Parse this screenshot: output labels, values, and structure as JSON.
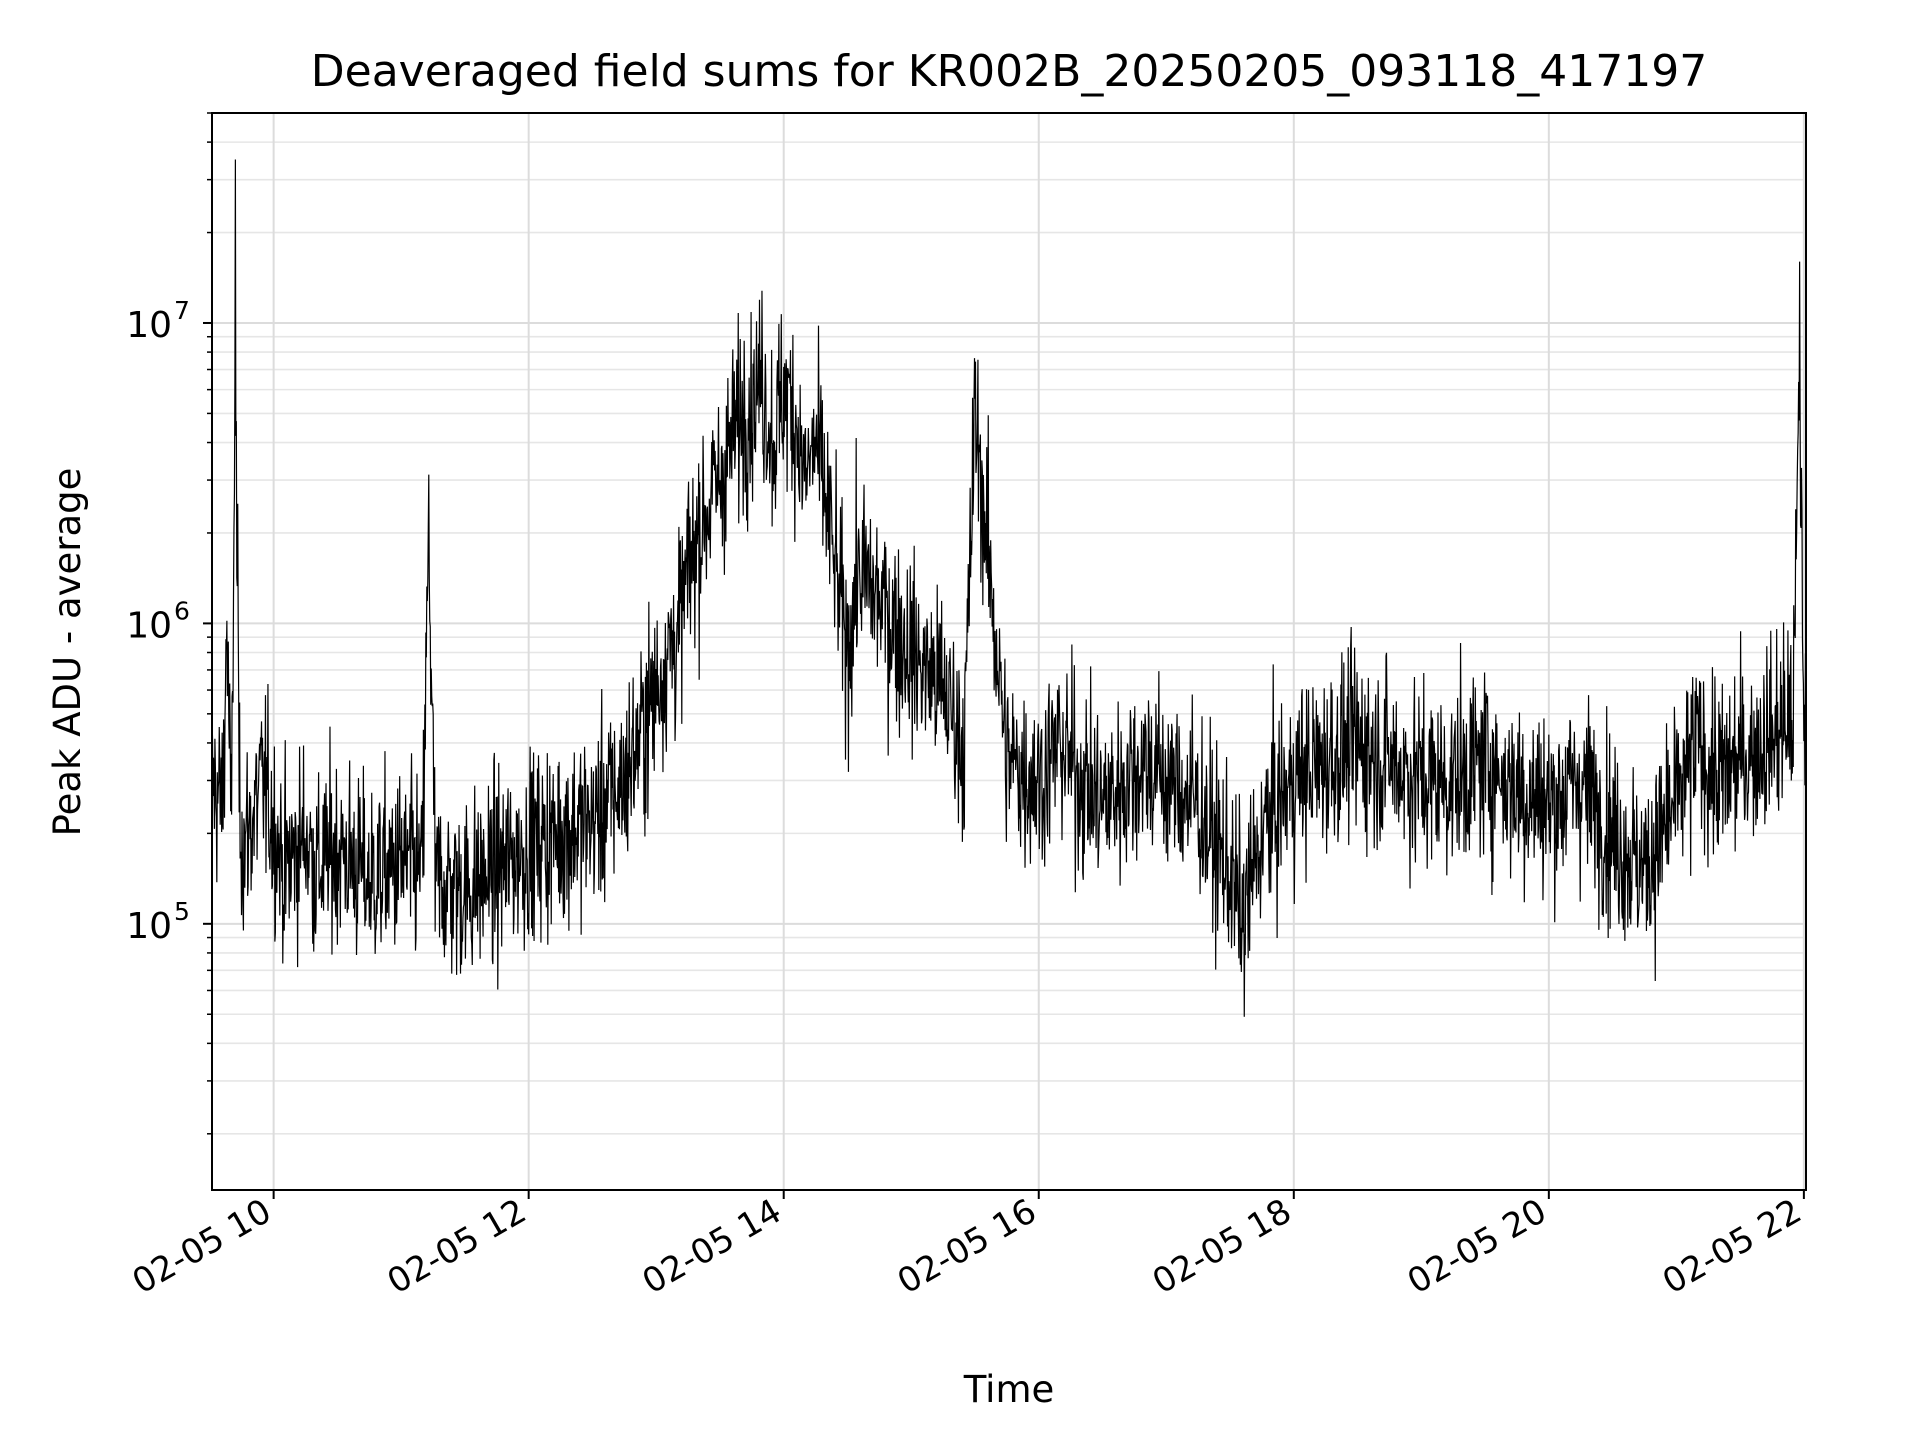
{
  "chart_data": {
    "type": "line",
    "title": "Deaveraged field sums for KR002B_20250205_093118_417197",
    "xlabel": "Time",
    "ylabel": "Peak ADU - average",
    "x_range": [
      "02-05 09:31",
      "02-05 22:01"
    ],
    "y_scale": "log",
    "ylim": [
      13000,
      50000000
    ],
    "grid": true,
    "legend": "none",
    "x_ticks": [
      {
        "hour": 10,
        "label": "02-05 10"
      },
      {
        "hour": 12,
        "label": "02-05 12"
      },
      {
        "hour": 14,
        "label": "02-05 14"
      },
      {
        "hour": 16,
        "label": "02-05 16"
      },
      {
        "hour": 18,
        "label": "02-05 18"
      },
      {
        "hour": 20,
        "label": "02-05 20"
      },
      {
        "hour": 22,
        "label": "02-05 22"
      }
    ],
    "y_ticks": [
      {
        "value": 100000,
        "base": "10",
        "exp": "5"
      },
      {
        "value": 1000000,
        "base": "10",
        "exp": "6"
      },
      {
        "value": 10000000,
        "base": "10",
        "exp": "7"
      }
    ],
    "line_color": "#000000",
    "series": [
      {
        "x": [
          "02-05 09:31",
          "02-05 09:36",
          "02-05 09:38",
          "02-05 09:40",
          "02-05 09:42",
          "02-05 09:44",
          "02-05 09:46",
          "02-05 09:48",
          "02-05 09:55",
          "02-05 10:05",
          "02-05 10:15",
          "02-05 10:20",
          "02-05 10:30",
          "02-05 10:45",
          "02-05 11:00",
          "02-05 11:10",
          "02-05 11:13",
          "02-05 11:16",
          "02-05 11:30",
          "02-05 11:45",
          "02-05 12:00",
          "02-05 12:15",
          "02-05 12:30",
          "02-05 12:45",
          "02-05 13:00",
          "02-05 13:05",
          "02-05 13:10",
          "02-05 13:15",
          "02-05 13:20",
          "02-05 13:25",
          "02-05 13:30",
          "02-05 13:40",
          "02-05 13:50",
          "02-05 13:55",
          "02-05 14:00",
          "02-05 14:05",
          "02-05 14:10",
          "02-05 14:15",
          "02-05 14:20",
          "02-05 14:30",
          "02-05 14:35",
          "02-05 14:45",
          "02-05 15:00",
          "02-05 15:15",
          "02-05 15:25",
          "02-05 15:30",
          "02-05 15:45",
          "02-05 16:00",
          "02-05 16:10",
          "02-05 16:20",
          "02-05 16:30",
          "02-05 16:50",
          "02-05 17:00",
          "02-05 17:15",
          "02-05 17:20",
          "02-05 17:30",
          "02-05 17:36",
          "02-05 17:45",
          "02-05 18:00",
          "02-05 18:15",
          "02-05 18:30",
          "02-05 18:45",
          "02-05 19:00",
          "02-05 19:15",
          "02-05 19:30",
          "02-05 19:45",
          "02-05 20:00",
          "02-05 20:15",
          "02-05 20:30",
          "02-05 20:45",
          "02-05 21:00",
          "02-05 21:10",
          "02-05 21:20",
          "02-05 21:30",
          "02-05 21:40",
          "02-05 21:50",
          "02-05 21:55",
          "02-05 21:58",
          "02-05 22:00",
          "02-05 22:01"
        ],
        "y": [
          300000,
          250000,
          1000000,
          200000,
          35000000,
          250000,
          180000,
          200000,
          300000,
          150000,
          200000,
          150000,
          180000,
          140000,
          160000,
          150000,
          2000000,
          140000,
          130000,
          150000,
          180000,
          200000,
          220000,
          300000,
          600000,
          800000,
          900000,
          1500000,
          2000000,
          2500000,
          3000000,
          5000000,
          7000000,
          4000000,
          6000000,
          5000000,
          3000000,
          4000000,
          2500000,
          800000,
          1500000,
          1200000,
          800000,
          600000,
          400000,
          5000000,
          350000,
          300000,
          400000,
          300000,
          250000,
          350000,
          300000,
          250000,
          200000,
          150000,
          100000,
          200000,
          300000,
          350000,
          400000,
          350000,
          300000,
          300000,
          350000,
          280000,
          250000,
          300000,
          200000,
          150000,
          250000,
          400000,
          300000,
          350000,
          400000,
          450000,
          500000,
          16000000,
          500000,
          600000
        ]
      }
    ]
  }
}
